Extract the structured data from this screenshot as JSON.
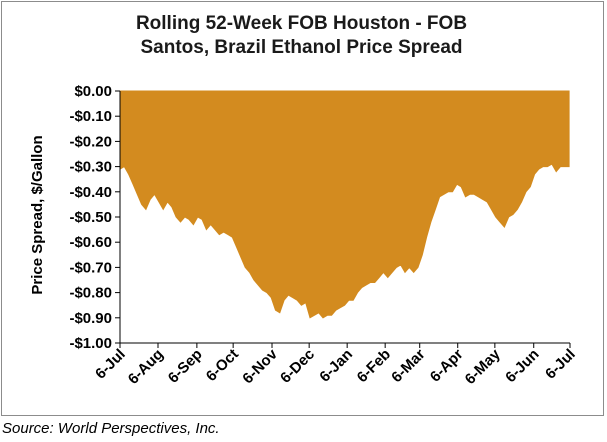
{
  "chart_data": {
    "type": "area",
    "title_line1": "Rolling 52-Week FOB Houston - FOB",
    "title_line2": "Santos, Brazil Ethanol Price Spread",
    "xlabel": "",
    "ylabel": "Price Spread, $/Gallon",
    "ylim": [
      -1.0,
      0.0
    ],
    "y_ticks": [
      "$0.00",
      "-$0.10",
      "-$0.20",
      "-$0.30",
      "-$0.40",
      "-$0.50",
      "-$0.60",
      "-$0.70",
      "-$0.80",
      "-$0.90",
      "-$1.00"
    ],
    "y_tick_values": [
      0,
      -0.1,
      -0.2,
      -0.3,
      -0.4,
      -0.5,
      -0.6,
      -0.7,
      -0.8,
      -0.9,
      -1.0
    ],
    "x_ticks": [
      "6-Jul",
      "6-Aug",
      "6-Sep",
      "6-Oct",
      "6-Nov",
      "6-Dec",
      "6-Jan",
      "6-Feb",
      "6-Mar",
      "6-Apr",
      "6-May",
      "6-Jun",
      "6-Jul"
    ],
    "x_tick_weeks": [
      0,
      4.4,
      8.9,
      13.1,
      17.6,
      21.9,
      26.3,
      30.7,
      34.7,
      39.1,
      43.4,
      47.9,
      52.1
    ],
    "grid": false,
    "legend": "none",
    "fill_color": "#D38B1F",
    "series": [
      {
        "weeks": [
          0,
          0.5,
          1,
          1.5,
          2,
          2.5,
          3,
          3.5,
          4,
          4.5,
          5,
          5.5,
          6,
          6.5,
          7,
          7.5,
          8,
          8.5,
          9,
          9.5,
          10,
          10.5,
          11,
          11.5,
          12,
          12.5,
          13,
          13.5,
          14,
          14.5,
          15,
          15.5,
          16,
          16.5,
          17,
          17.5,
          18,
          18.5,
          19,
          19.5,
          20,
          20.5,
          21,
          21.5,
          22,
          22.5,
          23,
          23.5,
          24,
          24.5,
          25,
          25.5,
          26,
          26.5,
          27,
          27.5,
          28,
          28.5,
          29,
          29.5,
          30,
          30.5,
          31,
          31.5,
          32,
          32.5,
          33,
          33.5,
          34,
          34.5,
          35,
          35.5,
          36,
          36.5,
          37,
          37.5,
          38,
          38.5,
          39,
          39.5,
          40,
          40.5,
          41,
          41.5,
          42,
          42.5,
          43,
          43.5,
          44,
          44.5,
          45,
          45.5,
          46,
          46.5,
          47,
          47.5,
          48,
          48.5,
          49,
          49.5,
          50,
          50.5,
          51,
          51.5,
          52
        ],
        "values": [
          -0.31,
          -0.3,
          -0.33,
          -0.37,
          -0.41,
          -0.45,
          -0.47,
          -0.43,
          -0.41,
          -0.44,
          -0.47,
          -0.44,
          -0.46,
          -0.5,
          -0.52,
          -0.5,
          -0.51,
          -0.53,
          -0.5,
          -0.51,
          -0.55,
          -0.53,
          -0.55,
          -0.57,
          -0.56,
          -0.57,
          -0.58,
          -0.62,
          -0.66,
          -0.7,
          -0.72,
          -0.75,
          -0.77,
          -0.79,
          -0.8,
          -0.82,
          -0.87,
          -0.88,
          -0.83,
          -0.81,
          -0.82,
          -0.83,
          -0.85,
          -0.84,
          -0.9,
          -0.89,
          -0.88,
          -0.9,
          -0.89,
          -0.89,
          -0.87,
          -0.86,
          -0.85,
          -0.83,
          -0.83,
          -0.8,
          -0.78,
          -0.77,
          -0.76,
          -0.76,
          -0.74,
          -0.72,
          -0.74,
          -0.72,
          -0.7,
          -0.69,
          -0.72,
          -0.7,
          -0.72,
          -0.7,
          -0.65,
          -0.58,
          -0.52,
          -0.47,
          -0.42,
          -0.41,
          -0.4,
          -0.4,
          -0.37,
          -0.38,
          -0.42,
          -0.41,
          -0.41,
          -0.42,
          -0.43,
          -0.44,
          -0.47,
          -0.5,
          -0.52,
          -0.54,
          -0.5,
          -0.49,
          -0.47,
          -0.44,
          -0.4,
          -0.38,
          -0.33,
          -0.31,
          -0.3,
          -0.3,
          -0.29,
          -0.32,
          -0.3,
          -0.3,
          -0.3
        ]
      }
    ]
  },
  "footer": {
    "source": "Source: World Perspectives, Inc."
  }
}
